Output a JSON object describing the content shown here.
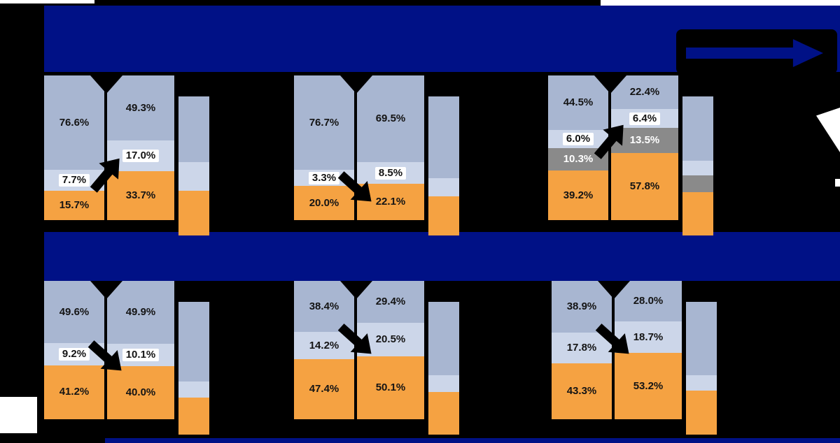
{
  "page": {
    "background": "#000000"
  },
  "header": {
    "title": "",
    "annotation_text": ""
  },
  "colors": {
    "navy": "#001186",
    "bluegray": "#A8B6D1",
    "lightblue": "#CCD6E9",
    "orange": "#F5A242",
    "gray": "#8A8A8A",
    "label_dark": "#141414",
    "label_white": "#FFFFFF",
    "arrow_black": "#000000"
  },
  "chart_data": {
    "type": "bar",
    "stacked": true,
    "unit": "%",
    "grid": "2 rows x 3 columns of 100%-stacked bar panels",
    "legend_position": "none-visible",
    "panels": [
      {
        "id": "top-left",
        "color_keys": [
          "bluegray",
          "lightblue",
          "orange"
        ],
        "arrow": "up",
        "arrow_y_frac": 0.68,
        "bars": [
          {
            "label": "",
            "values": [
              76.6,
              7.7,
              15.7
            ],
            "labels": [
              "76.6%",
              "7.7%",
              "15.7%"
            ],
            "label_styles": [
              "plain",
              "box",
              "plain"
            ]
          },
          {
            "label": "",
            "values": [
              49.3,
              17.0,
              33.7
            ],
            "labels": [
              "49.3%",
              "17.0%",
              "33.7%"
            ],
            "label_styles": [
              "plain",
              "box",
              "plain"
            ]
          },
          {
            "label": "",
            "values": [
              47,
              21,
              32
            ],
            "labels": [
              "",
              "",
              ""
            ],
            "label_styles": [
              "plain",
              "plain",
              "plain"
            ]
          }
        ]
      },
      {
        "id": "top-middle",
        "color_keys": [
          "bluegray",
          "lightblue",
          "orange"
        ],
        "arrow": "down",
        "arrow_y_frac": 0.78,
        "bars": [
          {
            "label": "",
            "values": [
              76.7,
              3.3,
              20.0
            ],
            "labels": [
              "76.7%",
              "3.3%",
              "20.0%"
            ],
            "label_styles": [
              "plain",
              "box",
              "plain"
            ]
          },
          {
            "label": "",
            "values": [
              69.5,
              8.5,
              22.1
            ],
            "labels": [
              "69.5%",
              "8.5%",
              "22.1%"
            ],
            "label_styles": [
              "plain",
              "box",
              "plain"
            ]
          },
          {
            "label": "",
            "values": [
              59,
              13,
              28
            ],
            "labels": [
              "",
              "",
              ""
            ],
            "label_styles": [
              "plain",
              "plain",
              "plain"
            ]
          }
        ]
      },
      {
        "id": "top-right",
        "color_keys": [
          "bluegray",
          "lightblue",
          "gray",
          "orange"
        ],
        "arrow": "up",
        "arrow_y_frac": 0.45,
        "bars": [
          {
            "label": "",
            "values": [
              44.5,
              6.0,
              10.3,
              39.2
            ],
            "labels": [
              "44.5%",
              "6.0%",
              "10.3%",
              "39.2%"
            ],
            "label_styles": [
              "plain",
              "box",
              "white",
              "plain"
            ]
          },
          {
            "label": "",
            "values": [
              22.4,
              6.4,
              13.5,
              57.8
            ],
            "labels": [
              "22.4%",
              "6.4%",
              "13.5%",
              "57.8%"
            ],
            "label_styles": [
              "plain",
              "box",
              "white",
              "plain"
            ]
          },
          {
            "label": "",
            "values": [
              46,
              11,
              12,
              31
            ],
            "labels": [
              "",
              "",
              "",
              ""
            ],
            "label_styles": [
              "plain",
              "plain",
              "plain",
              "plain"
            ]
          }
        ]
      },
      {
        "id": "bottom-left",
        "color_keys": [
          "bluegray",
          "lightblue",
          "orange"
        ],
        "arrow": "down",
        "arrow_y_frac": 0.55,
        "bars": [
          {
            "label": "",
            "values": [
              49.6,
              9.2,
              41.2
            ],
            "labels": [
              "49.6%",
              "9.2%",
              "41.2%"
            ],
            "label_styles": [
              "plain",
              "box",
              "plain"
            ]
          },
          {
            "label": "",
            "values": [
              49.9,
              10.1,
              40.0
            ],
            "labels": [
              "49.9%",
              "10.1%",
              "40.0%"
            ],
            "label_styles": [
              "plain",
              "box",
              "plain"
            ]
          },
          {
            "label": "",
            "values": [
              60,
              12,
              28
            ],
            "labels": [
              "",
              "",
              ""
            ],
            "label_styles": [
              "plain",
              "plain",
              "plain"
            ]
          }
        ]
      },
      {
        "id": "bottom-middle",
        "color_keys": [
          "bluegray",
          "lightblue",
          "orange"
        ],
        "arrow": "down",
        "arrow_y_frac": 0.43,
        "bars": [
          {
            "label": "",
            "values": [
              38.4,
              14.2,
              47.4
            ],
            "labels": [
              "38.4%",
              "14.2%",
              "47.4%"
            ],
            "label_styles": [
              "plain",
              "plain",
              "plain"
            ]
          },
          {
            "label": "",
            "values": [
              29.4,
              20.5,
              50.1
            ],
            "labels": [
              "29.4%",
              "20.5%",
              "50.1%"
            ],
            "label_styles": [
              "plain",
              "plain",
              "plain"
            ]
          },
          {
            "label": "",
            "values": [
              55,
              13,
              32
            ],
            "labels": [
              "",
              "",
              ""
            ],
            "label_styles": [
              "plain",
              "plain",
              "plain"
            ]
          }
        ]
      },
      {
        "id": "bottom-right",
        "color_keys": [
          "bluegray",
          "lightblue",
          "orange"
        ],
        "arrow": "down",
        "arrow_y_frac": 0.43,
        "bars": [
          {
            "label": "",
            "values": [
              38.9,
              17.8,
              43.3
            ],
            "labels": [
              "38.9%",
              "17.8%",
              "43.3%"
            ],
            "label_styles": [
              "plain",
              "plain",
              "plain"
            ]
          },
          {
            "label": "",
            "values": [
              28.0,
              18.7,
              53.2
            ],
            "labels": [
              "28.0%",
              "18.7%",
              "53.2%"
            ],
            "label_styles": [
              "plain",
              "plain",
              "plain"
            ]
          },
          {
            "label": "",
            "values": [
              55,
              12,
              33
            ],
            "labels": [
              "",
              "",
              ""
            ],
            "label_styles": [
              "plain",
              "plain",
              "plain"
            ]
          }
        ]
      }
    ]
  }
}
